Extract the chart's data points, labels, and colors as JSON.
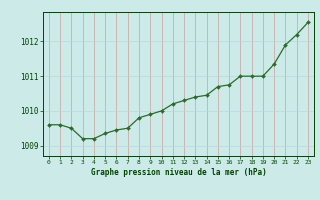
{
  "x": [
    0,
    1,
    2,
    3,
    4,
    5,
    6,
    7,
    8,
    9,
    10,
    11,
    12,
    13,
    14,
    15,
    16,
    17,
    18,
    19,
    20,
    21,
    22,
    23
  ],
  "y": [
    1009.6,
    1009.6,
    1009.5,
    1009.2,
    1009.2,
    1009.35,
    1009.45,
    1009.5,
    1009.8,
    1009.9,
    1010.0,
    1010.2,
    1010.3,
    1010.4,
    1010.45,
    1010.7,
    1010.75,
    1011.0,
    1011.0,
    1011.0,
    1011.35,
    1011.9,
    1012.2,
    1012.55
  ],
  "line_color": "#2d6a2d",
  "marker": "D",
  "marker_size": 2.0,
  "bg_color": "#cceae7",
  "grid_color_v": "#b8d8d8",
  "grid_color_h": "#c8a0a0",
  "xlabel": "Graphe pression niveau de la mer (hPa)",
  "xlabel_color": "#004400",
  "tick_color": "#004400",
  "ylim": [
    1008.7,
    1012.85
  ],
  "yticks": [
    1009,
    1010,
    1011,
    1012
  ],
  "xlim": [
    -0.5,
    23.5
  ],
  "xticks": [
    0,
    1,
    2,
    3,
    4,
    5,
    6,
    7,
    8,
    9,
    10,
    11,
    12,
    13,
    14,
    15,
    16,
    17,
    18,
    19,
    20,
    21,
    22,
    23
  ]
}
